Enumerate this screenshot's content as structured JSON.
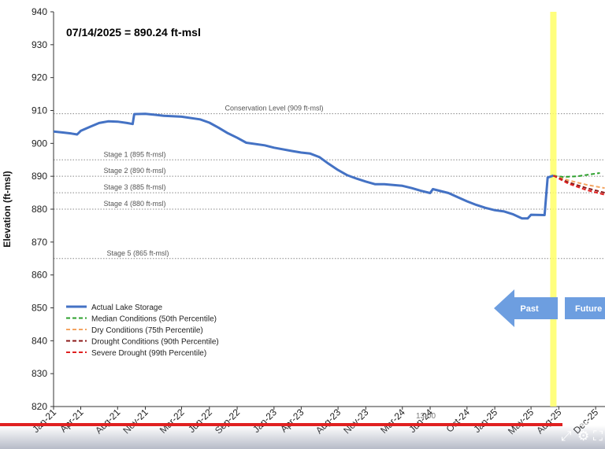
{
  "chart_data": {
    "type": "line",
    "title": "",
    "annotation": "07/14/2025 = 890.24 ft-msl",
    "xlabel": "",
    "ylabel": "Elevation (ft-msl)",
    "ylim": [
      820,
      940
    ],
    "yticks": [
      820,
      830,
      840,
      850,
      860,
      870,
      880,
      890,
      900,
      910,
      920,
      930,
      940
    ],
    "x_tick_labels": [
      "Jan-21",
      "Apr-21",
      "Aug-21",
      "Nov-21",
      "Mar-22",
      "Jun-22",
      "Sep-22",
      "Jan-23",
      "Apr-23",
      "Aug-23",
      "Nov-23",
      "Mar-24",
      "Jun-24",
      "Oct-24",
      "Jan-25",
      "May-25",
      "Aug-25",
      "Dec-25"
    ],
    "x_tick_dates": [
      "2021-01",
      "2021-04",
      "2021-08",
      "2021-11",
      "2022-03",
      "2022-06",
      "2022-09",
      "2023-01",
      "2023-04",
      "2023-08",
      "2023-11",
      "2024-03",
      "2024-06",
      "2024-10",
      "2025-01",
      "2025-05",
      "2025-08",
      "2025-12"
    ],
    "grid": false,
    "legend_position": "bottom-left",
    "reference_lines": [
      {
        "label": "Conservation Level (909 ft-msl)",
        "value": 909
      },
      {
        "label": "Stage 1 (895 ft-msl)",
        "value": 895
      },
      {
        "label": "Stage 2 (890 ft-msl)",
        "value": 890
      },
      {
        "label": "Stage 3 (885 ft-msl)",
        "value": 885
      },
      {
        "label": "Stage 4 (880 ft-msl)",
        "value": 880
      },
      {
        "label": "Stage 5 (865 ft-msl)",
        "value": 865
      }
    ],
    "current_date_marker": "2025-07-14",
    "past_label": "Past",
    "future_label": "Future",
    "series": [
      {
        "name": "Actual Lake Storage",
        "color": "#4472c4",
        "style": "solid",
        "points": [
          [
            "2021-01-01",
            903.6
          ],
          [
            "2021-02-01",
            903.3
          ],
          [
            "2021-03-01",
            903.0
          ],
          [
            "2021-03-20",
            902.7
          ],
          [
            "2021-04-01",
            903.8
          ],
          [
            "2021-05-01",
            905.0
          ],
          [
            "2021-06-01",
            906.2
          ],
          [
            "2021-07-01",
            906.7
          ],
          [
            "2021-08-01",
            906.6
          ],
          [
            "2021-09-01",
            906.2
          ],
          [
            "2021-09-20",
            905.9
          ],
          [
            "2021-09-25",
            908.9
          ],
          [
            "2021-11-01",
            909.0
          ],
          [
            "2021-12-01",
            908.7
          ],
          [
            "2022-01-01",
            908.4
          ],
          [
            "2022-03-01",
            908.1
          ],
          [
            "2022-05-01",
            907.3
          ],
          [
            "2022-06-01",
            906.3
          ],
          [
            "2022-07-01",
            904.8
          ],
          [
            "2022-08-01",
            903.1
          ],
          [
            "2022-09-01",
            901.7
          ],
          [
            "2022-10-01",
            900.2
          ],
          [
            "2022-12-01",
            899.4
          ],
          [
            "2023-01-01",
            898.7
          ],
          [
            "2023-03-01",
            897.7
          ],
          [
            "2023-04-01",
            897.2
          ],
          [
            "2023-05-01",
            896.9
          ],
          [
            "2023-06-01",
            895.8
          ],
          [
            "2023-07-01",
            893.8
          ],
          [
            "2023-08-01",
            891.9
          ],
          [
            "2023-09-01",
            890.3
          ],
          [
            "2023-10-01",
            889.3
          ],
          [
            "2023-11-01",
            888.4
          ],
          [
            "2023-12-01",
            887.6
          ],
          [
            "2024-01-01",
            887.6
          ],
          [
            "2024-03-01",
            887.1
          ],
          [
            "2024-04-01",
            886.4
          ],
          [
            "2024-05-01",
            885.6
          ],
          [
            "2024-06-01",
            884.9
          ],
          [
            "2024-06-10",
            886.1
          ],
          [
            "2024-08-01",
            884.9
          ],
          [
            "2024-09-01",
            883.6
          ],
          [
            "2024-10-01",
            882.4
          ],
          [
            "2024-11-01",
            881.3
          ],
          [
            "2024-12-01",
            880.4
          ],
          [
            "2025-01-01",
            879.7
          ],
          [
            "2025-02-01",
            879.3
          ],
          [
            "2025-03-01",
            878.5
          ],
          [
            "2025-04-01",
            877.2
          ],
          [
            "2025-04-20",
            877.2
          ],
          [
            "2025-05-01",
            878.3
          ],
          [
            "2025-06-15",
            878.2
          ],
          [
            "2025-06-25",
            889.6
          ],
          [
            "2025-07-14",
            890.2
          ]
        ]
      },
      {
        "name": "Median Conditions (50th Percentile)",
        "color": "#2ca02c",
        "style": "dashed",
        "points": [
          [
            "2025-07-14",
            890.2
          ],
          [
            "2025-08-15",
            889.8
          ],
          [
            "2025-10-01",
            890.0
          ],
          [
            "2025-12-15",
            891.0
          ]
        ]
      },
      {
        "name": "Dry Conditions (75th Percentile)",
        "color": "#f4a460",
        "style": "dashed",
        "points": [
          [
            "2025-07-14",
            890.2
          ],
          [
            "2025-09-01",
            888.8
          ],
          [
            "2025-11-01",
            887.4
          ],
          [
            "2025-12-31",
            886.4
          ]
        ]
      },
      {
        "name": "Drought Conditions (90th Percentile)",
        "color": "#8b1a1a",
        "style": "dashed",
        "points": [
          [
            "2025-07-14",
            890.2
          ],
          [
            "2025-09-01",
            888.2
          ],
          [
            "2025-11-01",
            886.4
          ],
          [
            "2025-12-31",
            885.0
          ]
        ]
      },
      {
        "name": "Severe Drought (99th Percentile)",
        "color": "#e02020",
        "style": "dashed",
        "points": [
          [
            "2025-07-14",
            890.2
          ],
          [
            "2025-09-01",
            887.8
          ],
          [
            "2025-11-01",
            885.8
          ],
          [
            "2025-12-31",
            884.4
          ]
        ]
      }
    ]
  },
  "player": {
    "time": "13:00",
    "progress": 0.93,
    "controls": [
      "expand-icon",
      "gear-icon",
      "fullscreen-icon"
    ]
  }
}
